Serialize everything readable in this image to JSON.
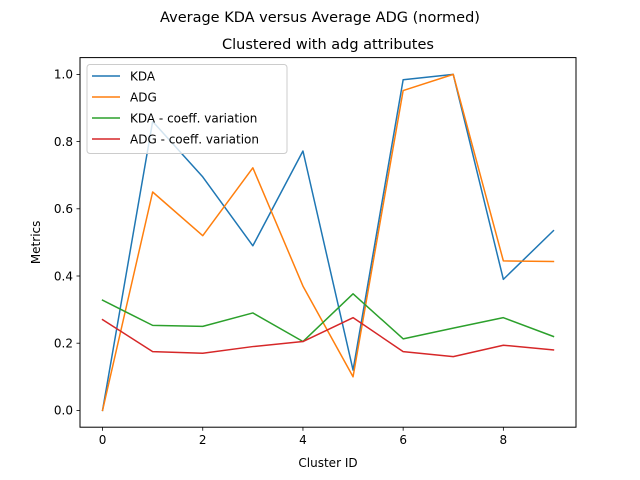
{
  "chart_data": {
    "type": "line",
    "suptitle": "Average KDA versus Average ADG (normed)",
    "title": "Clustered with adg attributes",
    "xlabel": "Cluster ID",
    "ylabel": "Metrics",
    "x": [
      0,
      1,
      2,
      3,
      4,
      5,
      6,
      7,
      8,
      9
    ],
    "xlim": [
      -0.45,
      9.45
    ],
    "ylim": [
      -0.05,
      1.05
    ],
    "xticks": [
      0,
      2,
      4,
      6,
      8
    ],
    "yticks": [
      0.0,
      0.2,
      0.4,
      0.6,
      0.8,
      1.0
    ],
    "ytick_labels": [
      "0.0",
      "0.2",
      "0.4",
      "0.6",
      "0.8",
      "1.0"
    ],
    "grid": false,
    "legend_position": "upper-left",
    "series": [
      {
        "name": "KDA",
        "color": "#1f77b4",
        "values": [
          0.0,
          0.86,
          0.695,
          0.49,
          0.772,
          0.12,
          0.984,
          1.0,
          0.39,
          0.535
        ]
      },
      {
        "name": "ADG",
        "color": "#ff7f0e",
        "values": [
          0.0,
          0.65,
          0.52,
          0.722,
          0.37,
          0.1,
          0.952,
          1.0,
          0.445,
          0.443
        ]
      },
      {
        "name": "KDA - coeff. variation",
        "color": "#2ca02c",
        "values": [
          0.328,
          0.253,
          0.25,
          0.29,
          0.205,
          0.347,
          0.213,
          0.245,
          0.276,
          0.22
        ]
      },
      {
        "name": "ADG - coeff. variation",
        "color": "#d62728",
        "values": [
          0.27,
          0.175,
          0.17,
          0.19,
          0.205,
          0.276,
          0.175,
          0.16,
          0.194,
          0.18
        ]
      }
    ]
  }
}
